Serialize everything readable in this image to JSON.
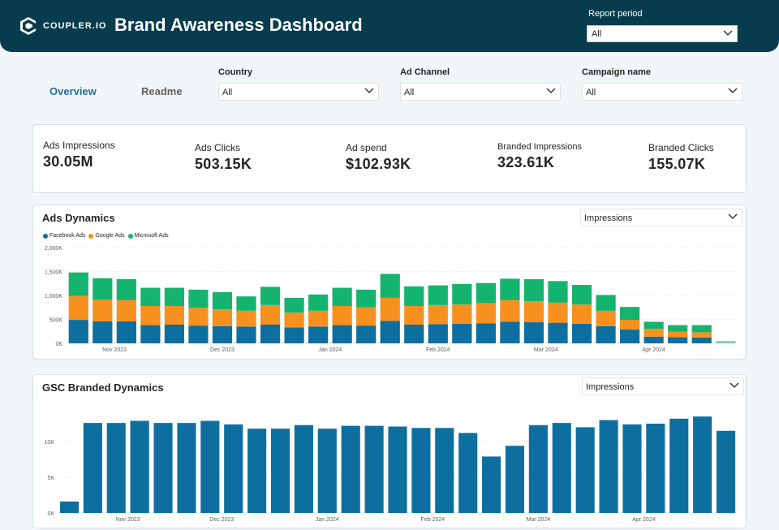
{
  "header": {
    "brand": "COUPLER.IO",
    "title": "Brand Awareness Dashboard",
    "report_period_label": "Report period",
    "report_period_value": "All"
  },
  "nav": {
    "tabs": [
      {
        "label": "Overview"
      },
      {
        "label": "Readme"
      }
    ]
  },
  "filters": {
    "country": {
      "label": "Country",
      "value": "All"
    },
    "ad_channel": {
      "label": "Ad Channel",
      "value": "All"
    },
    "campaign": {
      "label": "Campaign name",
      "value": "All"
    }
  },
  "kpis": [
    {
      "label": "Ads Impressions",
      "value": "30.05M"
    },
    {
      "label": "Ads Clicks",
      "value": "503.15K"
    },
    {
      "label": "Ad spend",
      "value": "$102.93K"
    },
    {
      "label": "Branded Impressions",
      "value": "323.61K"
    },
    {
      "label": "Branded Clicks",
      "value": "155.07K"
    }
  ],
  "colors": {
    "facebook": "#0d6fa0",
    "google": "#f7901e",
    "microsoft": "#15b46e",
    "gsc": "#0d6fa0"
  },
  "ads_panel": {
    "title": "Ads Dynamics",
    "metric": "Impressions"
  },
  "gsc_panel": {
    "title": "GSC Branded Dynamics",
    "metric": "Impressions"
  },
  "chart_data": [
    {
      "type": "bar",
      "stacked": true,
      "title": "Ads Dynamics",
      "legend": [
        "Facebook Ads",
        "Google Ads",
        "Microsoft Ads"
      ],
      "y_ticks": [
        "0K",
        "500K",
        "1,000K",
        "1,500K",
        "2,000K"
      ],
      "ylim": [
        0,
        2000
      ],
      "x_labels": [
        "Nov 2023",
        "Dec 2023",
        "Jan 2024",
        "Feb 2024",
        "Mar 2024",
        "Apr 2024"
      ],
      "series": [
        {
          "name": "Facebook Ads",
          "values": [
            490,
            460,
            460,
            380,
            390,
            370,
            360,
            350,
            390,
            330,
            350,
            380,
            370,
            470,
            390,
            400,
            410,
            420,
            450,
            440,
            430,
            410,
            360,
            290,
            140,
            130,
            120,
            0
          ]
        },
        {
          "name": "Google Ads",
          "values": [
            500,
            450,
            440,
            400,
            390,
            370,
            350,
            330,
            410,
            310,
            330,
            400,
            380,
            480,
            390,
            400,
            400,
            420,
            450,
            440,
            420,
            400,
            320,
            200,
            160,
            110,
            110,
            0
          ]
        },
        {
          "name": "Microsoft Ads",
          "values": [
            490,
            450,
            440,
            380,
            380,
            380,
            360,
            300,
            380,
            310,
            340,
            380,
            370,
            500,
            410,
            410,
            430,
            420,
            450,
            460,
            450,
            410,
            330,
            270,
            150,
            140,
            150,
            50
          ]
        }
      ]
    },
    {
      "type": "bar",
      "title": "GSC Branded Dynamics",
      "y_ticks": [
        "0K",
        "5K",
        "10K"
      ],
      "ylim": [
        0,
        15
      ],
      "x_labels": [
        "Nov 2023",
        "Dec 2023",
        "Jan 2024",
        "Feb 2024",
        "Mar 2024",
        "Apr 2024"
      ],
      "values": [
        1.6,
        12.6,
        12.6,
        12.9,
        12.6,
        12.6,
        12.9,
        12.4,
        11.8,
        11.8,
        12.3,
        11.8,
        12.2,
        12.2,
        12.1,
        11.9,
        11.9,
        11.2,
        7.9,
        9.4,
        12.3,
        12.6,
        12.0,
        13.0,
        12.4,
        12.5,
        13.2,
        13.5,
        11.5
      ]
    }
  ]
}
